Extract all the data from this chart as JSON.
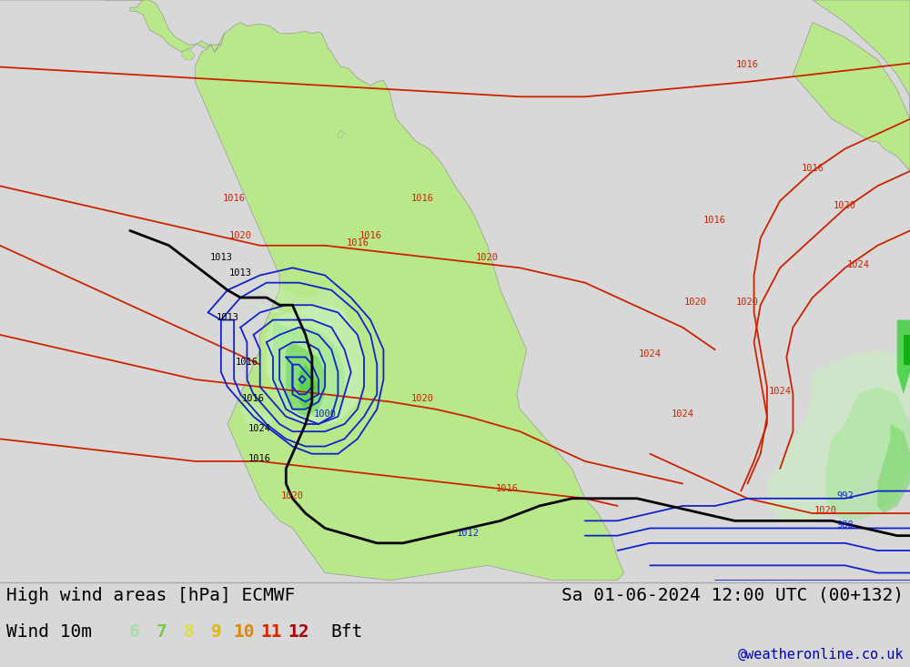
{
  "title_left": "High wind areas [hPa] ECMWF",
  "title_right": "Sa 01-06-2024 12:00 UTC (00+132)",
  "subtitle_left": "Wind 10m",
  "legend_values": [
    "6",
    "7",
    "8",
    "9",
    "10",
    "11",
    "12"
  ],
  "legend_colors": [
    "#aaddaa",
    "#77cc44",
    "#dddd44",
    "#ddbb00",
    "#dd8800",
    "#dd2200",
    "#aa0000"
  ],
  "legend_suffix": "Bft",
  "watermark": "@weatheronline.co.uk",
  "watermark_color": "#0000bb",
  "bg_map": "#d8d8d8",
  "bg_bar": "#ffffff",
  "land_color": "#b8e88a",
  "land_edge": "#888888",
  "wind_6": "#c8f0c0",
  "wind_7": "#a0e890",
  "wind_8": "#70d860",
  "wind_9": "#40c840",
  "isobar_red": "#cc2200",
  "isobar_blue": "#1122cc",
  "isobar_black": "#000000",
  "isobar_lw_main": 1.8,
  "isobar_lw_sub": 1.3,
  "label_fs": 7.5
}
